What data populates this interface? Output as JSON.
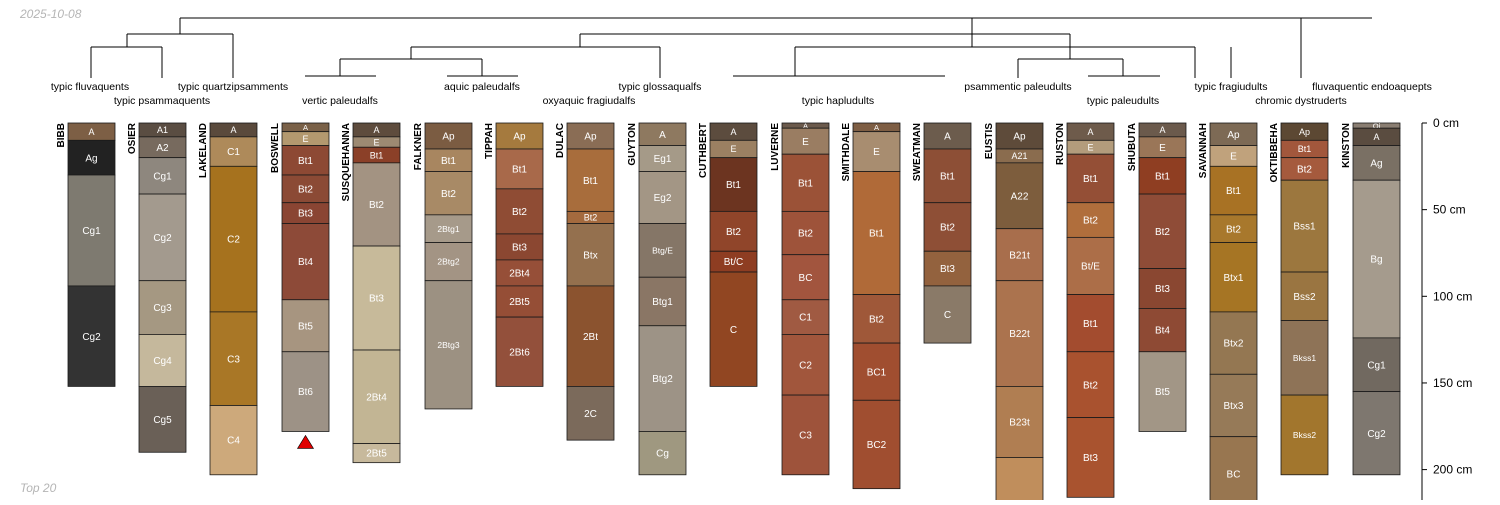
{
  "header": {
    "date": "2025-10-08",
    "footer": "Top 20"
  },
  "depth_axis": {
    "unit": "cm",
    "max_depth": 220,
    "ticks": [
      {
        "value": 0,
        "label": "0 cm"
      },
      {
        "value": 50,
        "label": "50 cm"
      },
      {
        "value": 100,
        "label": "100 cm"
      },
      {
        "value": 150,
        "label": "150 cm"
      },
      {
        "value": 200,
        "label": "200 cm"
      }
    ]
  },
  "taxa": [
    {
      "id": "t_fluv",
      "label": "typic fluvaquents"
    },
    {
      "id": "t_psam",
      "label": "typic psammaquents"
    },
    {
      "id": "t_quartz",
      "label": "typic quartzipsamments"
    },
    {
      "id": "t_vertic",
      "label": "vertic paleudalfs"
    },
    {
      "id": "t_aquic",
      "label": "aquic paleudalfs"
    },
    {
      "id": "t_oxy",
      "label": "oxyaquic fragiudalfs"
    },
    {
      "id": "t_gloss",
      "label": "typic glossaqualfs"
    },
    {
      "id": "t_haplu",
      "label": "typic hapludults"
    },
    {
      "id": "t_psampal",
      "label": "psammentic paleudults"
    },
    {
      "id": "t_typpal",
      "label": "typic paleudults"
    },
    {
      "id": "t_frag",
      "label": "typic fragiudults"
    },
    {
      "id": "t_chrom",
      "label": "chromic dystruderts"
    },
    {
      "id": "t_endo",
      "label": "fluvaquentic endoaquepts"
    }
  ],
  "profiles": [
    {
      "name": "BIBB",
      "horizons": [
        {
          "name": "A",
          "top": 0,
          "bottom": 10,
          "color": "#7d5f45"
        },
        {
          "name": "Ag",
          "top": 10,
          "bottom": 30,
          "color": "#222222"
        },
        {
          "name": "Cg1",
          "top": 30,
          "bottom": 94,
          "color": "#7e7a70"
        },
        {
          "name": "Cg2",
          "top": 94,
          "bottom": 152,
          "color": "#333333"
        }
      ]
    },
    {
      "name": "OSIER",
      "horizons": [
        {
          "name": "A1",
          "top": 0,
          "bottom": 8,
          "color": "#5a4d42"
        },
        {
          "name": "A2",
          "top": 8,
          "bottom": 20,
          "color": "#776a5e"
        },
        {
          "name": "Cg1",
          "top": 20,
          "bottom": 41,
          "color": "#8e877e"
        },
        {
          "name": "Cg2",
          "top": 41,
          "bottom": 91,
          "color": "#a39a8e"
        },
        {
          "name": "Cg3",
          "top": 91,
          "bottom": 122,
          "color": "#a59882"
        },
        {
          "name": "Cg4",
          "top": 122,
          "bottom": 152,
          "color": "#c5b89c"
        },
        {
          "name": "Cg5",
          "top": 152,
          "bottom": 190,
          "color": "#6a6057"
        }
      ]
    },
    {
      "name": "LAKELAND",
      "horizons": [
        {
          "name": "A",
          "top": 0,
          "bottom": 8,
          "color": "#5a4a3c"
        },
        {
          "name": "C1",
          "top": 8,
          "bottom": 25,
          "color": "#ae8a5a"
        },
        {
          "name": "C2",
          "top": 25,
          "bottom": 109,
          "color": "#a6721e"
        },
        {
          "name": "C3",
          "top": 109,
          "bottom": 163,
          "color": "#a97726"
        },
        {
          "name": "C4",
          "top": 163,
          "bottom": 203,
          "color": "#cda97b"
        }
      ]
    },
    {
      "name": "BOSWELL",
      "horizons": [
        {
          "name": "A",
          "top": 0,
          "bottom": 5,
          "color": "#7a6148"
        },
        {
          "name": "E",
          "top": 5,
          "bottom": 13,
          "color": "#b3996f"
        },
        {
          "name": "Bt1",
          "top": 13,
          "bottom": 30,
          "color": "#8d4934"
        },
        {
          "name": "Bt2",
          "top": 30,
          "bottom": 46,
          "color": "#8b4a35"
        },
        {
          "name": "Bt3",
          "top": 46,
          "bottom": 58,
          "color": "#8a4533"
        },
        {
          "name": "Bt4",
          "top": 58,
          "bottom": 102,
          "color": "#8d4a38"
        },
        {
          "name": "Bt5",
          "top": 102,
          "bottom": 132,
          "color": "#a79580"
        },
        {
          "name": "Bt6",
          "top": 132,
          "bottom": 178,
          "color": "#9d9286"
        }
      ]
    },
    {
      "name": "SUSQUEHANNA",
      "horizons": [
        {
          "name": "A",
          "top": 0,
          "bottom": 8,
          "color": "#5e4c3d"
        },
        {
          "name": "E",
          "top": 8,
          "bottom": 14,
          "color": "#9d8a72"
        },
        {
          "name": "Bt1",
          "top": 14,
          "bottom": 23,
          "color": "#8b4028"
        },
        {
          "name": "Bt2",
          "top": 23,
          "bottom": 71,
          "color": "#a39382"
        },
        {
          "name": "Bt3",
          "top": 71,
          "bottom": 131,
          "color": "#c7ba9a"
        },
        {
          "name": "2Bt4",
          "top": 131,
          "bottom": 185,
          "color": "#c2b594"
        },
        {
          "name": "2Bt5",
          "top": 185,
          "bottom": 196,
          "color": "#c7b99c"
        }
      ]
    },
    {
      "name": "FALKNER",
      "horizons": [
        {
          "name": "Ap",
          "top": 0,
          "bottom": 15,
          "color": "#7b5c42"
        },
        {
          "name": "Bt1",
          "top": 15,
          "bottom": 28,
          "color": "#a88660"
        },
        {
          "name": "Bt2",
          "top": 28,
          "bottom": 53,
          "color": "#a88a66"
        },
        {
          "name": "2Btg1",
          "top": 53,
          "bottom": 69,
          "color": "#a69a8a"
        },
        {
          "name": "2Btg2",
          "top": 69,
          "bottom": 91,
          "color": "#a39484"
        },
        {
          "name": "2Btg3",
          "top": 91,
          "bottom": 165,
          "color": "#9c9182"
        }
      ]
    },
    {
      "name": "TIPPAH",
      "horizons": [
        {
          "name": "Ap",
          "top": 0,
          "bottom": 15,
          "color": "#a57a3e"
        },
        {
          "name": "Bt1",
          "top": 15,
          "bottom": 38,
          "color": "#a8694a"
        },
        {
          "name": "Bt2",
          "top": 38,
          "bottom": 64,
          "color": "#8f4c34"
        },
        {
          "name": "Bt3",
          "top": 64,
          "bottom": 79,
          "color": "#8b4731"
        },
        {
          "name": "2Bt4",
          "top": 79,
          "bottom": 94,
          "color": "#964f38"
        },
        {
          "name": "2Bt5",
          "top": 94,
          "bottom": 112,
          "color": "#954e36"
        },
        {
          "name": "2Bt6",
          "top": 112,
          "bottom": 152,
          "color": "#93503b"
        }
      ]
    },
    {
      "name": "DULAC",
      "horizons": [
        {
          "name": "Ap",
          "top": 0,
          "bottom": 15,
          "color": "#8a6d55"
        },
        {
          "name": "Bt1",
          "top": 15,
          "bottom": 51,
          "color": "#a86d3c"
        },
        {
          "name": "Bt2",
          "top": 51,
          "bottom": 58,
          "color": "#a46a3e"
        },
        {
          "name": "Btx",
          "top": 58,
          "bottom": 94,
          "color": "#94704e"
        },
        {
          "name": "2Bt",
          "top": 94,
          "bottom": 152,
          "color": "#8b532f"
        },
        {
          "name": "2C",
          "top": 152,
          "bottom": 183,
          "color": "#7b6a5b"
        }
      ]
    },
    {
      "name": "GUYTON",
      "horizons": [
        {
          "name": "A",
          "top": 0,
          "bottom": 13,
          "color": "#8e7960"
        },
        {
          "name": "Eg1",
          "top": 13,
          "bottom": 28,
          "color": "#a59a88"
        },
        {
          "name": "Eg2",
          "top": 28,
          "bottom": 58,
          "color": "#a39685"
        },
        {
          "name": "Btg/E",
          "top": 58,
          "bottom": 89,
          "color": "#857667"
        },
        {
          "name": "Btg1",
          "top": 89,
          "bottom": 117,
          "color": "#8a7665"
        },
        {
          "name": "Btg2",
          "top": 117,
          "bottom": 178,
          "color": "#9d9386"
        },
        {
          "name": "Cg",
          "top": 178,
          "bottom": 203,
          "color": "#9f9880"
        }
      ]
    },
    {
      "name": "CUTHBERT",
      "horizons": [
        {
          "name": "A",
          "top": 0,
          "bottom": 10,
          "color": "#5c4c3e"
        },
        {
          "name": "E",
          "top": 10,
          "bottom": 20,
          "color": "#9b8062"
        },
        {
          "name": "Bt1",
          "top": 20,
          "bottom": 51,
          "color": "#6c3420"
        },
        {
          "name": "Bt2",
          "top": 51,
          "bottom": 74,
          "color": "#90452a"
        },
        {
          "name": "Bt/C",
          "top": 74,
          "bottom": 86,
          "color": "#8e3d22"
        },
        {
          "name": "C",
          "top": 86,
          "bottom": 152,
          "color": "#914622"
        }
      ]
    },
    {
      "name": "LUVERNE",
      "horizons": [
        {
          "name": "A",
          "top": 0,
          "bottom": 3,
          "color": "#6b5a4c"
        },
        {
          "name": "E",
          "top": 3,
          "bottom": 18,
          "color": "#9a7d62"
        },
        {
          "name": "Bt1",
          "top": 18,
          "bottom": 51,
          "color": "#9b5237"
        },
        {
          "name": "Bt2",
          "top": 51,
          "bottom": 76,
          "color": "#9e533a"
        },
        {
          "name": "BC",
          "top": 76,
          "bottom": 102,
          "color": "#a2553e"
        },
        {
          "name": "C1",
          "top": 102,
          "bottom": 122,
          "color": "#a05a42"
        },
        {
          "name": "C2",
          "top": 122,
          "bottom": 157,
          "color": "#a1563c"
        },
        {
          "name": "C3",
          "top": 157,
          "bottom": 203,
          "color": "#9e533b"
        }
      ]
    },
    {
      "name": "SMITHDALE",
      "horizons": [
        {
          "name": "A",
          "top": 0,
          "bottom": 5,
          "color": "#7e5e44"
        },
        {
          "name": "E",
          "top": 5,
          "bottom": 28,
          "color": "#a88d70"
        },
        {
          "name": "Bt1",
          "top": 28,
          "bottom": 99,
          "color": "#b06a38"
        },
        {
          "name": "Bt2",
          "top": 99,
          "bottom": 127,
          "color": "#9f5839"
        },
        {
          "name": "BC1",
          "top": 127,
          "bottom": 160,
          "color": "#a04e30"
        },
        {
          "name": "BC2",
          "top": 160,
          "bottom": 211,
          "color": "#a04e30"
        }
      ]
    },
    {
      "name": "SWEATMAN",
      "horizons": [
        {
          "name": "A",
          "top": 0,
          "bottom": 15,
          "color": "#6c5c4d"
        },
        {
          "name": "Bt1",
          "top": 15,
          "bottom": 46,
          "color": "#8d4f36"
        },
        {
          "name": "Bt2",
          "top": 46,
          "bottom": 74,
          "color": "#8e4f36"
        },
        {
          "name": "Bt3",
          "top": 74,
          "bottom": 94,
          "color": "#93623e"
        },
        {
          "name": "C",
          "top": 94,
          "bottom": 127,
          "color": "#8a7a68"
        }
      ]
    },
    {
      "name": "EUSTIS",
      "horizons": [
        {
          "name": "Ap",
          "top": 0,
          "bottom": 15,
          "color": "#5e4b3a"
        },
        {
          "name": "A21",
          "top": 15,
          "bottom": 23,
          "color": "#8a6c4e"
        },
        {
          "name": "A22",
          "top": 23,
          "bottom": 61,
          "color": "#7d5d3d"
        },
        {
          "name": "B21t",
          "top": 61,
          "bottom": 91,
          "color": "#a86e4c"
        },
        {
          "name": "B22t",
          "top": 91,
          "bottom": 152,
          "color": "#ab734e"
        },
        {
          "name": "B23t",
          "top": 152,
          "bottom": 193,
          "color": "#b07e52"
        },
        {
          "name": "",
          "top": 193,
          "bottom": 222,
          "color": "#c08e5c"
        }
      ]
    },
    {
      "name": "RUSTON",
      "horizons": [
        {
          "name": "A",
          "top": 0,
          "bottom": 10,
          "color": "#6e5b4b"
        },
        {
          "name": "E",
          "top": 10,
          "bottom": 18,
          "color": "#b39c7c"
        },
        {
          "name": "Bt1",
          "top": 18,
          "bottom": 46,
          "color": "#944f36"
        },
        {
          "name": "Bt2",
          "top": 46,
          "bottom": 66,
          "color": "#b06e3c"
        },
        {
          "name": "Bt/E",
          "top": 66,
          "bottom": 99,
          "color": "#ac6e48"
        },
        {
          "name": "Bt1",
          "top": 99,
          "bottom": 132,
          "color": "#a34c2f"
        },
        {
          "name": "Bt2",
          "top": 132,
          "bottom": 170,
          "color": "#a9522f"
        },
        {
          "name": "Bt3",
          "top": 170,
          "bottom": 216,
          "color": "#a9532f"
        }
      ]
    },
    {
      "name": "SHUBUTA",
      "horizons": [
        {
          "name": "A",
          "top": 0,
          "bottom": 8,
          "color": "#6b5a4c"
        },
        {
          "name": "E",
          "top": 8,
          "bottom": 20,
          "color": "#9a7658"
        },
        {
          "name": "Bt1",
          "top": 20,
          "bottom": 41,
          "color": "#8f3e22"
        },
        {
          "name": "Bt2",
          "top": 41,
          "bottom": 84,
          "color": "#8f4c37"
        },
        {
          "name": "Bt3",
          "top": 84,
          "bottom": 107,
          "color": "#8a4731"
        },
        {
          "name": "Bt4",
          "top": 107,
          "bottom": 132,
          "color": "#8e4a34"
        },
        {
          "name": "Bt5",
          "top": 132,
          "bottom": 178,
          "color": "#a29686"
        }
      ]
    },
    {
      "name": "SAVANNAH",
      "horizons": [
        {
          "name": "Ap",
          "top": 0,
          "bottom": 13,
          "color": "#7d6a55"
        },
        {
          "name": "E",
          "top": 13,
          "bottom": 25,
          "color": "#c0a27c"
        },
        {
          "name": "Bt1",
          "top": 25,
          "bottom": 53,
          "color": "#a87224"
        },
        {
          "name": "Bt2",
          "top": 53,
          "bottom": 69,
          "color": "#a8782c"
        },
        {
          "name": "Btx1",
          "top": 69,
          "bottom": 109,
          "color": "#a67524"
        },
        {
          "name": "Btx2",
          "top": 109,
          "bottom": 145,
          "color": "#947752"
        },
        {
          "name": "Btx3",
          "top": 145,
          "bottom": 181,
          "color": "#967a58"
        },
        {
          "name": "BC",
          "top": 181,
          "bottom": 224,
          "color": "#987650"
        }
      ]
    },
    {
      "name": "OKTIBBEHA",
      "horizons": [
        {
          "name": "Ap",
          "top": 0,
          "bottom": 10,
          "color": "#5c4833"
        },
        {
          "name": "Bt1",
          "top": 10,
          "bottom": 20,
          "color": "#a2573c"
        },
        {
          "name": "Bt2",
          "top": 20,
          "bottom": 33,
          "color": "#a55a3d"
        },
        {
          "name": "Bss1",
          "top": 33,
          "bottom": 86,
          "color": "#9c773e"
        },
        {
          "name": "Bss2",
          "top": 86,
          "bottom": 114,
          "color": "#9a7541"
        },
        {
          "name": "Bkss1",
          "top": 114,
          "bottom": 157,
          "color": "#8e7357"
        },
        {
          "name": "Bkss2",
          "top": 157,
          "bottom": 203,
          "color": "#a2762d"
        }
      ]
    },
    {
      "name": "KINSTON",
      "horizons": [
        {
          "name": "Oi",
          "top": 0,
          "bottom": 3,
          "color": "#8a7e72"
        },
        {
          "name": "A",
          "top": 3,
          "bottom": 13,
          "color": "#5a4c40"
        },
        {
          "name": "Ag",
          "top": 13,
          "bottom": 33,
          "color": "#7a7064"
        },
        {
          "name": "Bg",
          "top": 33,
          "bottom": 124,
          "color": "#a59b8d"
        },
        {
          "name": "Cg1",
          "top": 124,
          "bottom": 155,
          "color": "#716960"
        },
        {
          "name": "Cg2",
          "top": 155,
          "bottom": 203,
          "color": "#7e776f"
        }
      ]
    }
  ],
  "markers": [
    {
      "profile": "BOSWELL",
      "symbol": "triangle",
      "color": "#e00000"
    }
  ]
}
